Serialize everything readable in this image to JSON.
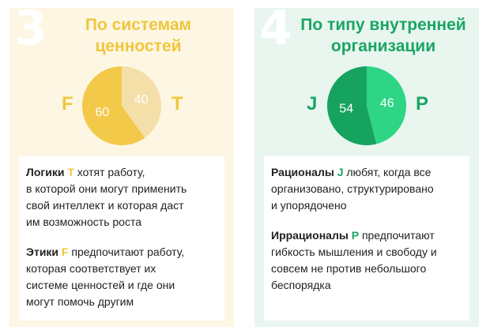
{
  "left_panel": {
    "number": "3",
    "title_line1": "По системам",
    "title_line2": "ценностей",
    "letter_left": "F",
    "letter_right": "T",
    "para1": {
      "lead": "Логики",
      "letter": "T",
      "rest_line1": "хотят работу,",
      "line2": "в которой они могут применить",
      "line3": "свой интеллект и которая даст",
      "line4": "им возможность роста"
    },
    "para2": {
      "lead": "Этики",
      "letter": "F",
      "rest_line1": "предпочитают работу,",
      "line2": "которая соответствует их",
      "line3": "системе ценностей и где они",
      "line4": "могут помочь другим"
    }
  },
  "right_panel": {
    "number": "4",
    "title_line1": "По типу внутренней",
    "title_line2": "организации",
    "letter_left": "J",
    "letter_right": "P",
    "para1": {
      "lead": "Рационалы",
      "letter": "J",
      "rest_line1": "любят, когда все",
      "line2": "организовано, структурировано",
      "line3": "и упорядочено"
    },
    "para2": {
      "lead": "Иррационалы",
      "letter": "P",
      "rest_line1": "предпочитают",
      "line2": "гибкость мышления и свободу и",
      "line3": "совсем не против небольшого",
      "line4": "беспорядка"
    }
  },
  "chart_data": [
    {
      "type": "pie",
      "categories": [
        "F",
        "T"
      ],
      "values": [
        60,
        40
      ],
      "colors": [
        "#f3c94a",
        "#f5dfa8"
      ]
    },
    {
      "type": "pie",
      "categories": [
        "J",
        "P"
      ],
      "values": [
        54,
        46
      ],
      "colors": [
        "#16a35f",
        "#2ed585"
      ]
    }
  ]
}
